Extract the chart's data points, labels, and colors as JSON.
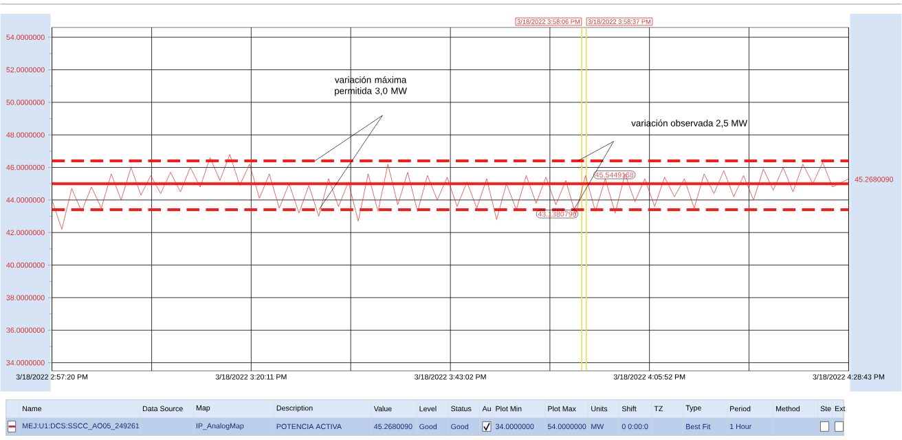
{
  "chart_data": {
    "type": "line",
    "x": [
      "2022-03-18T14:57:20",
      "2022-03-18T14:58:28",
      "2022-03-18T14:59:36",
      "2022-03-18T15:00:44",
      "2022-03-18T15:01:52",
      "2022-03-18T15:03:00",
      "2022-03-18T15:04:08",
      "2022-03-18T15:05:16",
      "2022-03-18T15:06:24",
      "2022-03-18T15:07:32",
      "2022-03-18T15:08:40",
      "2022-03-18T15:09:48",
      "2022-03-18T15:10:56",
      "2022-03-18T15:12:04",
      "2022-03-18T15:13:12",
      "2022-03-18T15:14:20",
      "2022-03-18T15:15:28",
      "2022-03-18T15:16:36",
      "2022-03-18T15:17:44",
      "2022-03-18T15:18:52",
      "2022-03-18T15:20:00",
      "2022-03-18T15:21:08",
      "2022-03-18T15:22:16",
      "2022-03-18T15:23:24",
      "2022-03-18T15:24:32",
      "2022-03-18T15:25:40",
      "2022-03-18T15:26:48",
      "2022-03-18T15:27:56",
      "2022-03-18T15:29:04",
      "2022-03-18T15:30:12",
      "2022-03-18T15:31:20",
      "2022-03-18T15:32:28",
      "2022-03-18T15:33:36",
      "2022-03-18T15:34:44",
      "2022-03-18T15:35:52",
      "2022-03-18T15:37:00",
      "2022-03-18T15:38:08",
      "2022-03-18T15:39:16",
      "2022-03-18T15:40:24",
      "2022-03-18T15:41:32",
      "2022-03-18T15:42:40",
      "2022-03-18T15:43:48",
      "2022-03-18T15:44:56",
      "2022-03-18T15:46:04",
      "2022-03-18T15:47:12",
      "2022-03-18T15:48:20",
      "2022-03-18T15:49:28",
      "2022-03-18T15:50:36",
      "2022-03-18T15:51:44",
      "2022-03-18T15:52:52",
      "2022-03-18T15:54:00",
      "2022-03-18T15:55:08",
      "2022-03-18T15:56:16",
      "2022-03-18T15:57:24",
      "2022-03-18T15:58:32",
      "2022-03-18T15:59:40",
      "2022-03-18T16:00:48",
      "2022-03-18T16:01:56",
      "2022-03-18T16:03:04",
      "2022-03-18T16:04:12",
      "2022-03-18T16:05:20",
      "2022-03-18T16:06:28",
      "2022-03-18T16:07:36",
      "2022-03-18T16:08:44",
      "2022-03-18T16:09:52",
      "2022-03-18T16:11:00",
      "2022-03-18T16:12:08",
      "2022-03-18T16:13:16",
      "2022-03-18T16:14:24",
      "2022-03-18T16:15:32",
      "2022-03-18T16:16:40",
      "2022-03-18T16:17:48",
      "2022-03-18T16:18:56",
      "2022-03-18T16:20:04",
      "2022-03-18T16:21:12",
      "2022-03-18T16:22:20",
      "2022-03-18T16:23:28",
      "2022-03-18T16:24:36",
      "2022-03-18T16:25:44",
      "2022-03-18T16:26:52",
      "2022-03-18T16:28:43"
    ],
    "series": [
      {
        "name": "MEJ:U1:DCS:SSCC_AO05_249261",
        "color": "#d42020",
        "values": [
          44.0,
          42.2,
          44.7,
          43.3,
          44.8,
          43.5,
          45.6,
          44.0,
          46.0,
          44.3,
          45.5,
          44.4,
          45.7,
          44.5,
          46.0,
          44.8,
          46.6,
          45.2,
          46.8,
          44.9,
          46.2,
          44.1,
          45.6,
          43.5,
          45.0,
          43.2,
          44.9,
          43.0,
          45.3,
          43.6,
          45.1,
          42.7,
          45.6,
          43.3,
          46.2,
          43.7,
          45.7,
          43.3,
          45.5,
          44.0,
          45.4,
          43.6,
          45.1,
          43.5,
          45.3,
          42.8,
          45.0,
          43.4,
          45.5,
          43.8,
          45.4,
          43.7,
          45.2,
          43.1,
          45.5,
          43.3,
          45.3,
          43.2,
          45.6,
          43.9,
          45.3,
          43.6,
          45.4,
          44.2,
          45.3,
          43.5,
          45.6,
          44.4,
          45.8,
          44.2,
          45.5,
          44.0,
          45.9,
          44.6,
          46.0,
          44.5,
          46.2,
          45.0,
          46.3,
          44.8,
          45.3
        ]
      }
    ],
    "xlim": [
      "2022-03-18T14:57:20",
      "2022-03-18T16:28:43"
    ],
    "ylim": [
      33.5,
      54.6
    ],
    "xticks": [
      {
        "value": "2022-03-18T14:57:20",
        "label": "3/18/2022  2:57:20 PM"
      },
      {
        "value": "2022-03-18T15:08:46",
        "label": null
      },
      {
        "value": "2022-03-18T15:20:11",
        "label": "3/18/2022  3:20:11 PM"
      },
      {
        "value": "2022-03-18T15:31:36",
        "label": null
      },
      {
        "value": "2022-03-18T15:43:02",
        "label": "3/18/2022  3:43:02 PM"
      },
      {
        "value": "2022-03-18T15:54:27",
        "label": null
      },
      {
        "value": "2022-03-18T16:05:52",
        "label": "3/18/2022  4:05:52 PM"
      },
      {
        "value": "2022-03-18T16:17:17",
        "label": null
      },
      {
        "value": "2022-03-18T16:28:43",
        "label": "3/18/2022  4:28:43 PM"
      }
    ],
    "yticks": [
      {
        "value": 34,
        "label": "34.0000000"
      },
      {
        "value": 36,
        "label": "36.0000000"
      },
      {
        "value": 38,
        "label": "38.0000000"
      },
      {
        "value": 40,
        "label": "40.0000000"
      },
      {
        "value": 42,
        "label": "42.0000000"
      },
      {
        "value": 44,
        "label": "44.0000000"
      },
      {
        "value": 46,
        "label": "46.0000000"
      },
      {
        "value": 48,
        "label": "48.0000000"
      },
      {
        "value": 50,
        "label": "50.0000000"
      },
      {
        "value": 52,
        "label": "52.0000000"
      },
      {
        "value": 54,
        "label": "54.0000000"
      }
    ],
    "grid": true,
    "legend": "bottom",
    "ref_lines": [
      {
        "axis": "y",
        "value": 45.0,
        "color": "#ff1a1a",
        "line_style": "solid"
      },
      {
        "axis": "y",
        "value": 46.4,
        "color": "#ff1a1a",
        "line_style": "dashed"
      },
      {
        "axis": "y",
        "value": 43.4,
        "color": "#ff1a1a",
        "line_style": "dashed"
      },
      {
        "axis": "x",
        "value": "2022-03-18T15:58:06",
        "label": "3/18/2022  3:58:06 PM",
        "color": "#e6df6a"
      },
      {
        "axis": "x",
        "value": "2022-03-18T15:58:37",
        "label": "3/18/2022  3:58:37 PM",
        "color": "#e6df6a"
      }
    ],
    "annotations": [
      "variación máxima permitida 3,0 MW",
      "variación observada 2,5 MW",
      {
        "text": "43.1380796",
        "x": "2022-03-18T15:58:06",
        "y": 43.1380796
      },
      {
        "text": "45.5449168",
        "x": "2022-03-18T15:58:37",
        "y": 45.5449168
      },
      {
        "text": "45.2680090",
        "x": "2022-03-18T16:28:43",
        "y": 45.268
      },
      "Name",
      "Data Source",
      "Map",
      "Description",
      "Value",
      "Level",
      "Status",
      "Au",
      "Plot Min",
      "Plot Max",
      "Units",
      "Shift",
      "TZ",
      "Type",
      "Period",
      "Method",
      "Ste",
      "Ext",
      "IP_AnalogMap",
      "POTENCIA ACTIVA",
      "45.2680090",
      "Good",
      "Good",
      "34.0000000",
      "54.0000000",
      "MW",
      "0  0:00:0",
      "Best Fit",
      "1 Hour"
    ]
  }
}
